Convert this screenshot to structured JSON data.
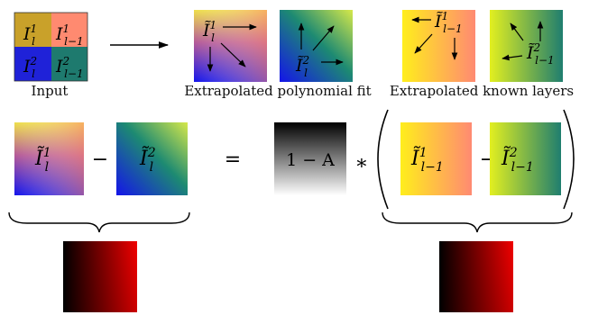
{
  "captions": {
    "input": "Input",
    "poly_fit": "Extrapolated polynomial fit",
    "known_layers": "Extrapolated known layers"
  },
  "symbols": {
    "I": "I",
    "tilde_I": "Ĩ",
    "sub_l": "l",
    "sub_lm1": "l−1",
    "sup_1": "1",
    "sup_2": "2"
  },
  "operators": {
    "minus": "−",
    "equals": "=",
    "times": "∗",
    "one_minus_A": "1 − A"
  },
  "colors": {
    "blue": "#1515e6",
    "magenta": "#b05aa0",
    "yellow": "#ffef1a",
    "salmon": "#ff8a70",
    "teal": "#1e7a6e",
    "red": "#ee0000",
    "black": "#000000"
  }
}
